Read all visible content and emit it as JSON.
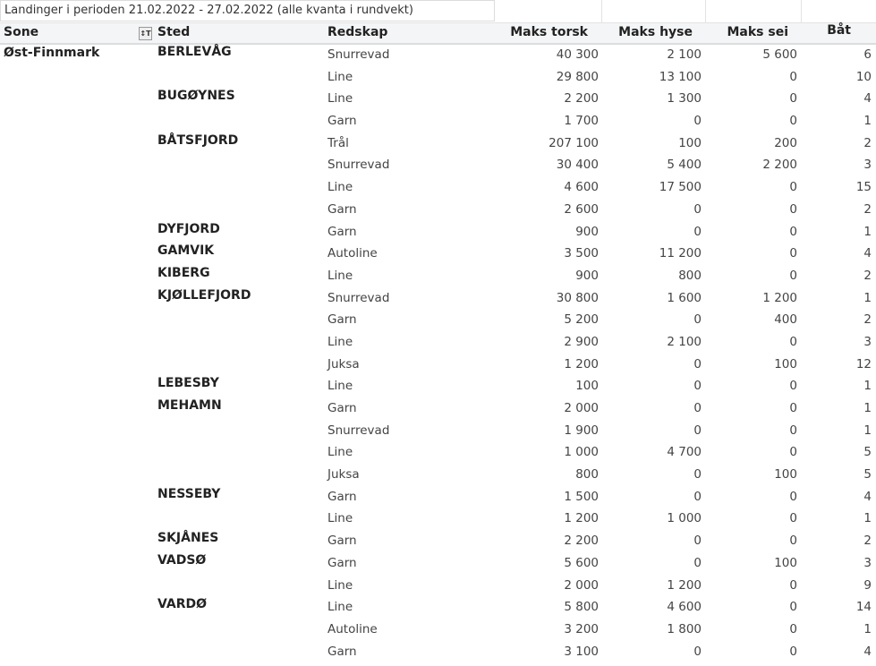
{
  "title": "Landinger i perioden 21.02.2022 - 27.02.2022 (alle kvanta i rundvekt)",
  "columns": {
    "sone": "Sone",
    "sted": "Sted",
    "redskap": "Redskap",
    "torsk": "Maks torsk",
    "hyse": "Maks hyse",
    "sei": "Maks sei",
    "bat": "Båt"
  },
  "filter_icon": "filter-icon",
  "sone": "Øst-Finnmark",
  "rows": [
    {
      "sted": "BERLEVÅG",
      "redskap": "Snurrevad",
      "torsk": "40 300",
      "hyse": "2 100",
      "sei": "5 600",
      "bat": "6"
    },
    {
      "sted": "",
      "redskap": "Line",
      "torsk": "29 800",
      "hyse": "13 100",
      "sei": "0",
      "bat": "10"
    },
    {
      "sted": "BUGØYNES",
      "redskap": "Line",
      "torsk": "2 200",
      "hyse": "1 300",
      "sei": "0",
      "bat": "4"
    },
    {
      "sted": "",
      "redskap": "Garn",
      "torsk": "1 700",
      "hyse": "0",
      "sei": "0",
      "bat": "1"
    },
    {
      "sted": "BÅTSFJORD",
      "redskap": "Trål",
      "torsk": "207 100",
      "hyse": "100",
      "sei": "200",
      "bat": "2"
    },
    {
      "sted": "",
      "redskap": "Snurrevad",
      "torsk": "30 400",
      "hyse": "5 400",
      "sei": "2 200",
      "bat": "3"
    },
    {
      "sted": "",
      "redskap": "Line",
      "torsk": "4 600",
      "hyse": "17 500",
      "sei": "0",
      "bat": "15"
    },
    {
      "sted": "",
      "redskap": "Garn",
      "torsk": "2 600",
      "hyse": "0",
      "sei": "0",
      "bat": "2"
    },
    {
      "sted": "DYFJORD",
      "redskap": "Garn",
      "torsk": "900",
      "hyse": "0",
      "sei": "0",
      "bat": "1"
    },
    {
      "sted": "GAMVIK",
      "redskap": "Autoline",
      "torsk": "3 500",
      "hyse": "11 200",
      "sei": "0",
      "bat": "4"
    },
    {
      "sted": "KIBERG",
      "redskap": "Line",
      "torsk": "900",
      "hyse": "800",
      "sei": "0",
      "bat": "2"
    },
    {
      "sted": "KJØLLEFJORD",
      "redskap": "Snurrevad",
      "torsk": "30 800",
      "hyse": "1 600",
      "sei": "1 200",
      "bat": "1"
    },
    {
      "sted": "",
      "redskap": "Garn",
      "torsk": "5 200",
      "hyse": "0",
      "sei": "400",
      "bat": "2"
    },
    {
      "sted": "",
      "redskap": "Line",
      "torsk": "2 900",
      "hyse": "2 100",
      "sei": "0",
      "bat": "3"
    },
    {
      "sted": "",
      "redskap": "Juksa",
      "torsk": "1 200",
      "hyse": "0",
      "sei": "100",
      "bat": "12"
    },
    {
      "sted": "LEBESBY",
      "redskap": "Line",
      "torsk": "100",
      "hyse": "0",
      "sei": "0",
      "bat": "1"
    },
    {
      "sted": "MEHAMN",
      "redskap": "Garn",
      "torsk": "2 000",
      "hyse": "0",
      "sei": "0",
      "bat": "1"
    },
    {
      "sted": "",
      "redskap": "Snurrevad",
      "torsk": "1 900",
      "hyse": "0",
      "sei": "0",
      "bat": "1"
    },
    {
      "sted": "",
      "redskap": "Line",
      "torsk": "1 000",
      "hyse": "4 700",
      "sei": "0",
      "bat": "5"
    },
    {
      "sted": "",
      "redskap": "Juksa",
      "torsk": "800",
      "hyse": "0",
      "sei": "100",
      "bat": "5"
    },
    {
      "sted": "NESSEBY",
      "redskap": "Garn",
      "torsk": "1 500",
      "hyse": "0",
      "sei": "0",
      "bat": "4"
    },
    {
      "sted": "",
      "redskap": "Line",
      "torsk": "1 200",
      "hyse": "1 000",
      "sei": "0",
      "bat": "1"
    },
    {
      "sted": "SKJÅNES",
      "redskap": "Garn",
      "torsk": "2 200",
      "hyse": "0",
      "sei": "0",
      "bat": "2"
    },
    {
      "sted": "VADSØ",
      "redskap": "Garn",
      "torsk": "5 600",
      "hyse": "0",
      "sei": "100",
      "bat": "3"
    },
    {
      "sted": "",
      "redskap": "Line",
      "torsk": "2 000",
      "hyse": "1 200",
      "sei": "0",
      "bat": "9"
    },
    {
      "sted": "VARDØ",
      "redskap": "Line",
      "torsk": "5 800",
      "hyse": "4 600",
      "sei": "0",
      "bat": "14"
    },
    {
      "sted": "",
      "redskap": "Autoline",
      "torsk": "3 200",
      "hyse": "1 800",
      "sei": "0",
      "bat": "1"
    },
    {
      "sted": "",
      "redskap": "Garn",
      "torsk": "3 100",
      "hyse": "0",
      "sei": "0",
      "bat": "4"
    }
  ]
}
